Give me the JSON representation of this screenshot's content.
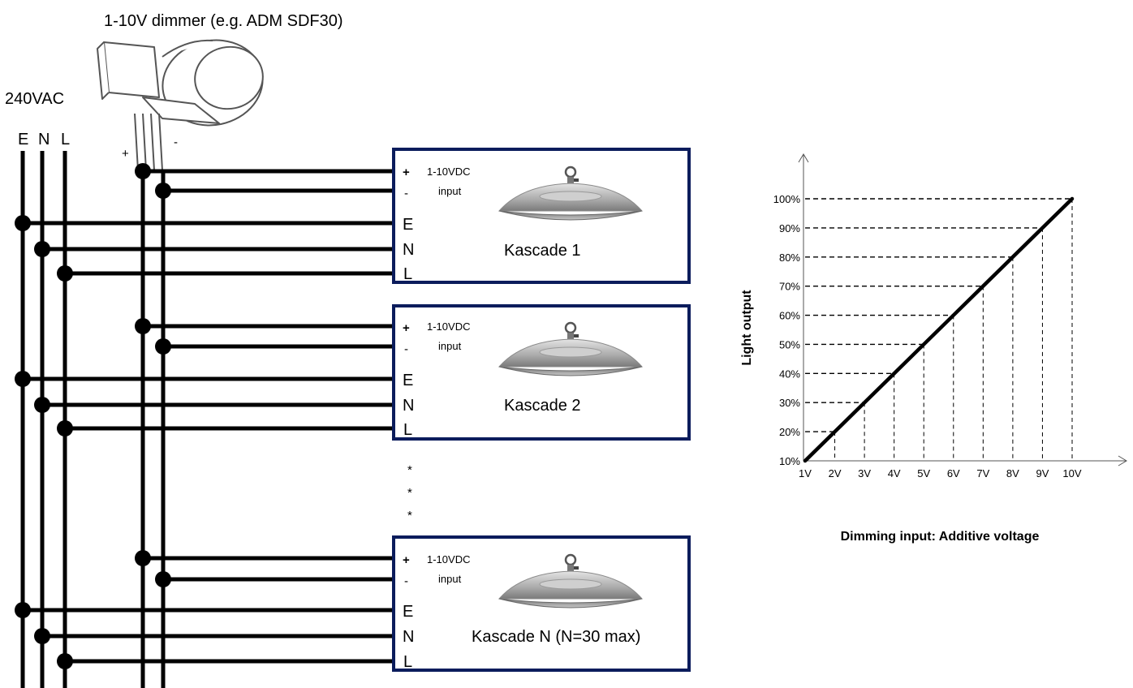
{
  "dimmer": {
    "title": "1-10V dimmer (e.g. ADM SDF30)",
    "plus": "+",
    "minus": "-"
  },
  "supply": {
    "label": "240VAC",
    "terminals": [
      "E",
      "N",
      "L"
    ]
  },
  "terminal_labels": {
    "plus": "+",
    "minus": "-",
    "e": "E",
    "n": "N",
    "l": "L",
    "input_line1": "1-10VDC",
    "input_line2": "input"
  },
  "lamps": [
    {
      "name": "Kascade 1"
    },
    {
      "name": "Kascade 2"
    },
    {
      "name": "Kascade N (N=30 max)"
    }
  ],
  "ellipsis": [
    "*",
    "*",
    "*"
  ],
  "chart_data": {
    "type": "line",
    "xlabel": "Dimming input: Additive voltage",
    "ylabel": "Light output",
    "x_ticks": [
      "1V",
      "2V",
      "3V",
      "4V",
      "5V",
      "6V",
      "7V",
      "8V",
      "9V",
      "10V"
    ],
    "y_ticks": [
      "10%",
      "20%",
      "30%",
      "40%",
      "50%",
      "60%",
      "70%",
      "80%",
      "90%",
      "100%"
    ],
    "series": [
      {
        "x": [
          1,
          2,
          3,
          4,
          5,
          6,
          7,
          8,
          9,
          10
        ],
        "y": [
          10,
          20,
          30,
          40,
          50,
          60,
          70,
          80,
          90,
          100
        ]
      }
    ],
    "xlim": [
      1,
      10
    ],
    "ylim": [
      10,
      100
    ],
    "guide_lines": "dashed"
  },
  "colors": {
    "box_border": "#0b1c5c",
    "wire": "#000000"
  }
}
